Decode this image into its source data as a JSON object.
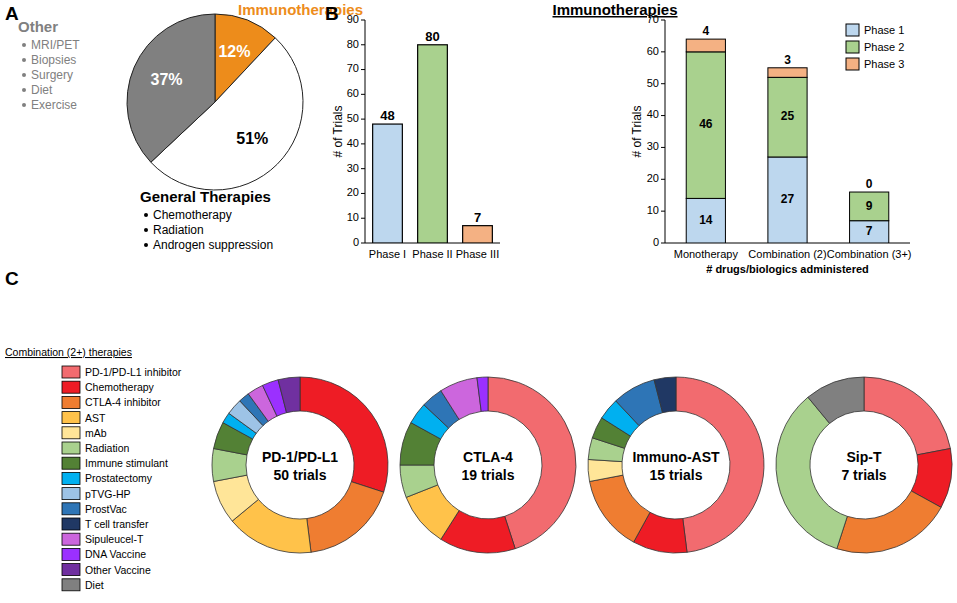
{
  "chart_data": [
    {
      "type": "pie",
      "panel": "A",
      "categories": [
        "Immunotherapies",
        "General Therapies",
        "Other"
      ],
      "values": [
        12,
        51,
        37
      ],
      "value_labels": [
        "12%",
        "51%",
        "37%"
      ],
      "colors": [
        "#ed8c1b",
        "#ffffff",
        "#808080"
      ],
      "category_items": [
        [],
        [
          "Chemotherapy",
          "Radiation",
          "Androgen suppression"
        ],
        [
          "MRI/PET",
          "Biopsies",
          "Surgery",
          "Diet",
          "Exercise"
        ]
      ],
      "data_labels": true
    },
    {
      "type": "bar",
      "panel": "B",
      "title": "Immunotherapies",
      "categories": [
        "Phase I",
        "Phase II",
        "Phase III"
      ],
      "values": [
        48,
        80,
        7
      ],
      "colors": [
        "#bdd7ee",
        "#a9d18e",
        "#f4b183"
      ],
      "ylabel": "# of Trials",
      "ylim": [
        0,
        90
      ],
      "yticks": [
        0,
        10,
        20,
        30,
        40,
        50,
        60,
        70,
        80,
        90
      ],
      "grid": false,
      "data_labels": true
    },
    {
      "type": "bar",
      "stacked": true,
      "categories": [
        "Monotherapy",
        "Combination (2)",
        "Combination (3+)"
      ],
      "xlabel": "# drugs/biologics administered",
      "ylabel": "# of Trials",
      "ylim": [
        0,
        70
      ],
      "yticks": [
        0,
        10,
        20,
        30,
        40,
        50,
        60,
        70
      ],
      "grid": false,
      "legend": "top-right",
      "data_labels": true,
      "series": [
        {
          "name": "Phase 1",
          "color": "#bdd7ee",
          "values": [
            14,
            27,
            7
          ]
        },
        {
          "name": "Phase 2",
          "color": "#a9d18e",
          "values": [
            46,
            25,
            9
          ]
        },
        {
          "name": "Phase 3",
          "color": "#f4b183",
          "values": [
            4,
            3,
            0
          ]
        }
      ]
    },
    {
      "type": "donut",
      "panel": "C",
      "legend_title": "Combination (2+) therapies",
      "categories": [
        "PD-1/PD-L1 inhibitor",
        "Chemotherapy",
        "CTLA-4 inhibitor",
        "AST",
        "mAb",
        "Radiation",
        "Immune stimulant",
        "Prostatectomy",
        "pTVG-HP",
        "ProstVac",
        "T cell transfer",
        "Sipuleucel-T",
        "DNA Vaccine",
        "Other Vaccine",
        "Diet"
      ],
      "colors": [
        "#f26b6f",
        "#ee1c25",
        "#ef7d31",
        "#ffc24a",
        "#ffe598",
        "#a9d18e",
        "#538135",
        "#00b0f0",
        "#9dc3e6",
        "#2e75b6",
        "#203864",
        "#cc66dd",
        "#9b30ff",
        "#7030a0",
        "#808080"
      ],
      "series": [
        {
          "name": "PD-1/PD-L1",
          "subtitle": "50 trials",
          "values": [
            0,
            30,
            18,
            16,
            8,
            6,
            5,
            2,
            3,
            2,
            0,
            3,
            3,
            4,
            0
          ]
        },
        {
          "name": "CTLA-4",
          "subtitle": "19 trials",
          "values": [
            45,
            14,
            0,
            10,
            0,
            6,
            8,
            4,
            0,
            4,
            0,
            7,
            2,
            0,
            0
          ]
        },
        {
          "name": "Immuno-AST",
          "subtitle": "15 trials",
          "values": [
            48,
            10,
            14,
            0,
            4,
            4,
            4,
            4,
            0,
            8,
            4,
            0,
            0,
            0,
            0
          ]
        },
        {
          "name": "Sip-T",
          "subtitle": "7 trials",
          "values": [
            22,
            11,
            22,
            0,
            0,
            34,
            0,
            0,
            0,
            0,
            0,
            0,
            0,
            0,
            11
          ]
        }
      ]
    }
  ]
}
